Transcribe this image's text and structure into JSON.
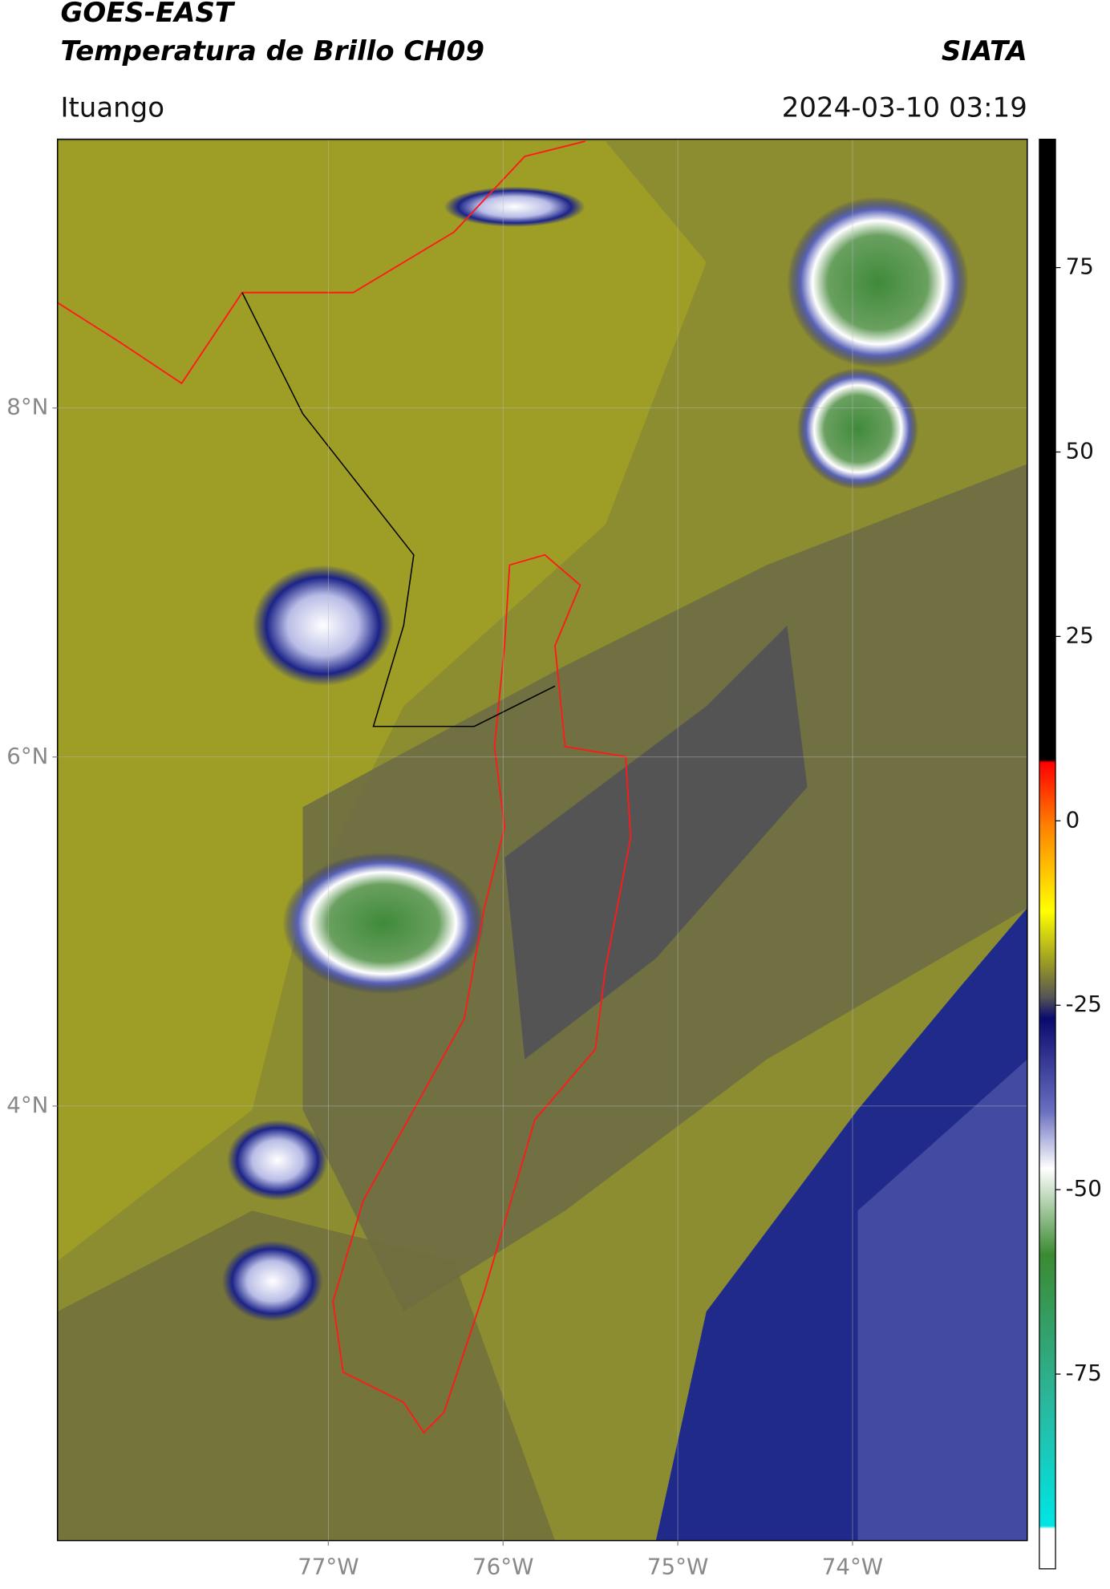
{
  "chart_data": {
    "type": "map",
    "title": "GOES-EAST",
    "subtitle": "Temperatura de Brillo CH09",
    "source": "SIATA",
    "location": "Ituango",
    "timestamp": "2024-03-10 03:19",
    "xlim": [
      -78.55,
      -73.0
    ],
    "ylim": [
      1.51,
      9.54
    ],
    "xticks": [
      {
        "value": -77,
        "label": "77°W"
      },
      {
        "value": -76,
        "label": "76°W"
      },
      {
        "value": -75,
        "label": "75°W"
      },
      {
        "value": -74,
        "label": "74°W"
      }
    ],
    "yticks": [
      {
        "value": 8,
        "label": "8°N"
      },
      {
        "value": 6,
        "label": "6°N"
      },
      {
        "value": 4,
        "label": "4°N"
      }
    ],
    "grid": true,
    "colorbar": {
      "lim": [
        -101.4,
        92.4
      ],
      "ticks": [
        75,
        50,
        25,
        0,
        -25,
        -50,
        -75
      ]
    }
  }
}
